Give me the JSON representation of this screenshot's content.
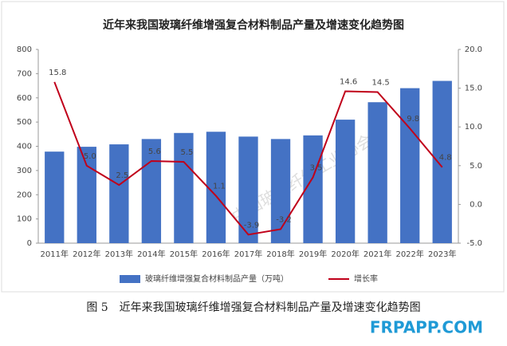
{
  "chart_data": {
    "type": "bar",
    "title": "近年来我国玻璃纤维增强复合材料制品产量及增速变化趋势图",
    "categories": [
      "2011年",
      "2012年",
      "2013年",
      "2014年",
      "2015年",
      "2016年",
      "2017年",
      "2018年",
      "2019年",
      "2020年",
      "2021年",
      "2022年",
      "2023年"
    ],
    "series": [
      {
        "name": "玻璃纤维增强复合材料制品产量（万吨）",
        "type": "bar",
        "color": "#4472c4",
        "values": [
          378,
          398,
          408,
          430,
          455,
          460,
          440,
          430,
          445,
          510,
          582,
          640,
          670
        ]
      },
      {
        "name": "增长率",
        "type": "line",
        "axis": "y2",
        "color": "#c0001a",
        "values": [
          15.8,
          5.0,
          2.5,
          5.6,
          5.5,
          1.1,
          -3.9,
          -3.2,
          3.5,
          14.6,
          14.5,
          9.8,
          4.8
        ],
        "value_labels": [
          "15.8",
          "5.0",
          "2.5",
          "5.6",
          "5.5",
          "1.1",
          "-3.9",
          "-3.2",
          "3.5",
          "14.6",
          "14.5",
          "9.8",
          "4.8"
        ]
      }
    ],
    "ylim": [
      0,
      800
    ],
    "yticks": [
      0,
      100,
      200,
      300,
      400,
      500,
      600,
      700,
      800
    ],
    "y2lim": [
      -5,
      20
    ],
    "y2ticks": [
      {
        "value": -5,
        "label": "-5.0"
      },
      {
        "value": 0,
        "label": "0.0"
      },
      {
        "value": 5,
        "label": "5.0"
      },
      {
        "value": 10,
        "label": "10.0"
      },
      {
        "value": 15,
        "label": "15.0"
      },
      {
        "value": 20,
        "label": "20.0"
      }
    ],
    "legend": "bottom",
    "watermark": "中国玻璃纤维工业协会",
    "caption": "图 5　近年来我国玻璃纤维增强复合材料制品产量及增速变化趋势图",
    "brand": "FRPAPP.COM"
  }
}
